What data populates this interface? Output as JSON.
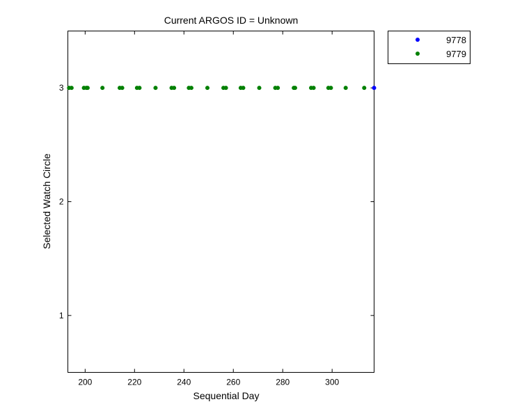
{
  "chart_data": {
    "type": "scatter",
    "title": "Current ARGOS ID = Unknown",
    "xlabel": "Sequential Day",
    "ylabel": "Selected Watch Circle",
    "xlim": [
      193,
      317
    ],
    "ylim": [
      0.5,
      3.5
    ],
    "xticks": [
      200,
      220,
      240,
      260,
      280,
      300
    ],
    "yticks": [
      1,
      2,
      3
    ],
    "grid": false,
    "legend_position": "outside-top-right",
    "series": [
      {
        "name": "9778",
        "color": "#0000ff",
        "points": [
          {
            "x": 317,
            "y": 3
          }
        ]
      },
      {
        "name": "9779",
        "color": "#008000",
        "points": [
          {
            "x": 193.5,
            "y": 3
          },
          {
            "x": 194.5,
            "y": 3
          },
          {
            "x": 199.5,
            "y": 3
          },
          {
            "x": 200.5,
            "y": 3
          },
          {
            "x": 201,
            "y": 3
          },
          {
            "x": 207,
            "y": 3
          },
          {
            "x": 214,
            "y": 3
          },
          {
            "x": 215,
            "y": 3
          },
          {
            "x": 221,
            "y": 3
          },
          {
            "x": 222,
            "y": 3
          },
          {
            "x": 228.5,
            "y": 3
          },
          {
            "x": 235,
            "y": 3
          },
          {
            "x": 236,
            "y": 3
          },
          {
            "x": 242,
            "y": 3
          },
          {
            "x": 243,
            "y": 3
          },
          {
            "x": 249.5,
            "y": 3
          },
          {
            "x": 256,
            "y": 3
          },
          {
            "x": 257,
            "y": 3
          },
          {
            "x": 263,
            "y": 3
          },
          {
            "x": 264,
            "y": 3
          },
          {
            "x": 270.5,
            "y": 3
          },
          {
            "x": 277,
            "y": 3
          },
          {
            "x": 278,
            "y": 3
          },
          {
            "x": 284.5,
            "y": 3
          },
          {
            "x": 285,
            "y": 3
          },
          {
            "x": 291.5,
            "y": 3
          },
          {
            "x": 292.5,
            "y": 3
          },
          {
            "x": 298.5,
            "y": 3
          },
          {
            "x": 299.5,
            "y": 3
          },
          {
            "x": 305.5,
            "y": 3
          },
          {
            "x": 313,
            "y": 3
          }
        ]
      }
    ]
  }
}
